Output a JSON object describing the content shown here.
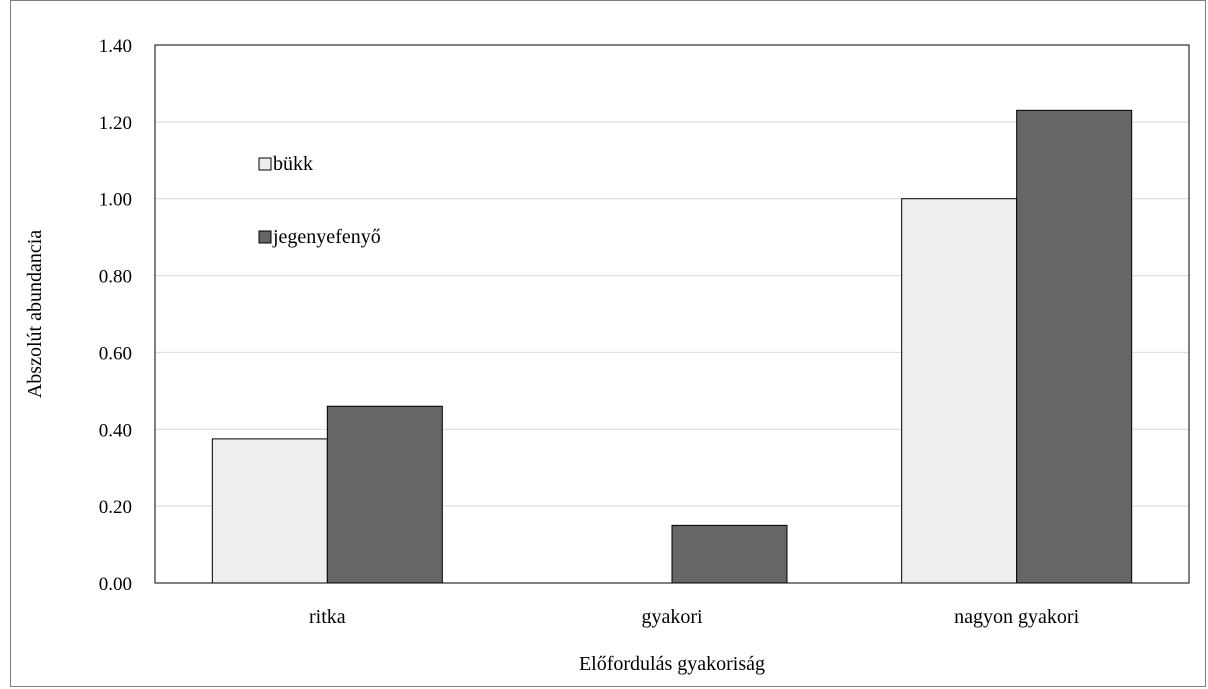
{
  "chart_data": {
    "type": "bar",
    "categories": [
      "ritka",
      "gyakori",
      "nagyon gyakori"
    ],
    "series": [
      {
        "name": "bükk",
        "values": [
          0.375,
          0.0,
          1.0
        ],
        "color": "#eeeeee"
      },
      {
        "name": "jegenyefenyő",
        "values": [
          0.46,
          0.15,
          1.23
        ],
        "color": "#666666"
      }
    ],
    "xlabel": "Előfordulás gyakoriság",
    "ylabel": "Abszolút abundancia",
    "ylim": [
      0,
      1.4
    ],
    "yticks": [
      "0.00",
      "0.20",
      "0.40",
      "0.60",
      "0.80",
      "1.00",
      "1.20",
      "1.40"
    ],
    "grid": true,
    "legend_position": "upper-left inside plot"
  }
}
